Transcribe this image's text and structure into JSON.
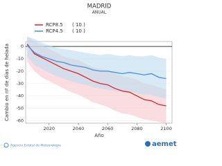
{
  "chart_data": {
    "type": "line",
    "title": "MADRID",
    "subtitle": "ANUAL",
    "y_label": "Cambio en nº de días de helada",
    "x_label": "Año",
    "x": [
      2005,
      2010,
      2015,
      2020,
      2025,
      2030,
      2035,
      2040,
      2045,
      2050,
      2055,
      2060,
      2065,
      2070,
      2075,
      2080,
      2085,
      2090,
      2095,
      2100
    ],
    "series": [
      {
        "name": "RCP8.5",
        "models_label": "( 10 )",
        "color": "#d9262b",
        "band_color": "#f7c6cb",
        "values": [
          2,
          -6,
          -9,
          -12,
          -15,
          -18,
          -20,
          -22,
          -25,
          -28,
          -30,
          -31,
          -34,
          -36,
          -37,
          -40,
          -43,
          -44,
          -47,
          -48
        ],
        "low": [
          -12,
          -20,
          -25,
          -28,
          -31,
          -34,
          -37,
          -39,
          -42,
          -45,
          -47,
          -49,
          -52,
          -54,
          -55,
          -57,
          -59,
          -60,
          -61,
          -62
        ],
        "high": [
          8,
          4,
          1,
          -2,
          -5,
          -8,
          -10,
          -11,
          -14,
          -17,
          -18,
          -19,
          -22,
          -24,
          -25,
          -27,
          -30,
          -31,
          -33,
          -35
        ]
      },
      {
        "name": "RCP4.5",
        "models_label": "( 10 )",
        "color": "#4a8fd6",
        "band_color": "#bcdcf0",
        "values": [
          1,
          -5,
          -8,
          -10,
          -12,
          -13,
          -15,
          -16,
          -17,
          -19,
          -20,
          -20,
          -21,
          -22,
          -21,
          -22,
          -23,
          -22,
          -25,
          -26
        ],
        "low": [
          -8,
          -15,
          -18,
          -21,
          -24,
          -26,
          -28,
          -30,
          -31,
          -33,
          -34,
          -35,
          -36,
          -37,
          -37,
          -38,
          -39,
          -39,
          -41,
          -42
        ],
        "high": [
          8,
          6,
          3,
          1,
          -1,
          -2,
          -3,
          -4,
          -5,
          -6,
          -7,
          -6,
          -7,
          -8,
          -7,
          -8,
          -8,
          -7,
          -9,
          -10
        ]
      }
    ],
    "xlim": [
      2004,
      2104
    ],
    "xticks": [
      2020,
      2040,
      2060,
      2080,
      2100
    ],
    "ylim": [
      4,
      -62
    ],
    "yticks": [
      0,
      -10,
      -20,
      -30,
      -40,
      -50,
      -60
    ],
    "grid": true
  },
  "footer": {
    "agency": "Agencia Estatal de Meteorología",
    "logo": "aemet"
  }
}
